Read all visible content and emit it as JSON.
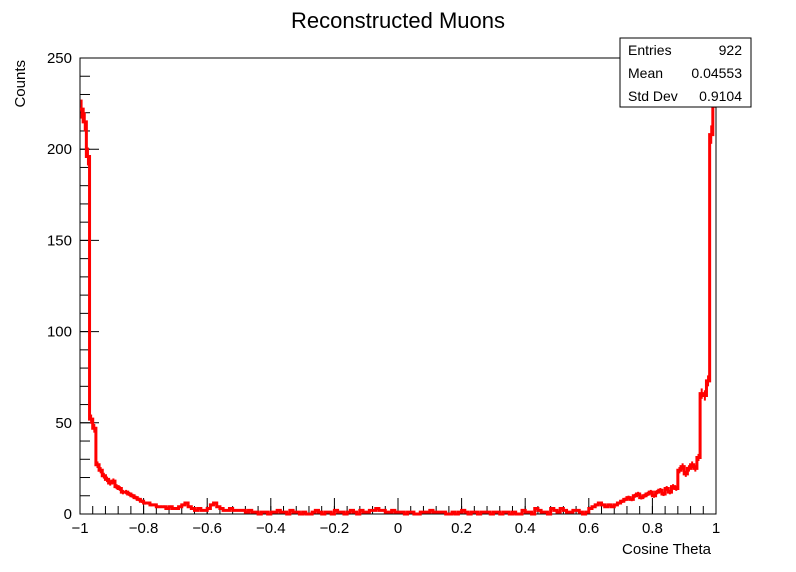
{
  "chart_data": {
    "type": "histogram",
    "title": "Reconstructed Muons",
    "xlabel": "Cosine Theta",
    "ylabel": "Counts",
    "xlim": [
      -1,
      1
    ],
    "ylim": [
      0,
      250
    ],
    "x_ticks": [
      -1,
      -0.8,
      -0.6,
      -0.4,
      -0.2,
      0,
      0.2,
      0.4,
      0.6,
      0.8,
      1
    ],
    "x_tick_labels": [
      "−1",
      "−0.8",
      "−0.6",
      "−0.4",
      "−0.2",
      "0",
      "0.2",
      "0.4",
      "0.6",
      "0.8",
      "1"
    ],
    "y_ticks": [
      0,
      50,
      100,
      150,
      200,
      250
    ],
    "y_tick_labels": [
      "0",
      "50",
      "100",
      "150",
      "200",
      "250"
    ],
    "line_color": "#ff0000",
    "grid": false,
    "legend": "none",
    "bins": {
      "count": 200,
      "range": [
        -1,
        1
      ],
      "values": [
        222,
        215,
        196,
        52,
        47,
        27,
        24,
        21,
        19,
        17,
        18,
        15,
        14,
        12,
        12,
        11,
        10,
        9,
        8,
        7,
        6,
        6,
        5,
        5,
        4,
        4,
        4,
        3,
        4,
        3,
        3,
        4,
        5,
        6,
        4,
        3,
        2,
        3,
        2,
        2,
        3,
        5,
        6,
        4,
        3,
        2,
        2,
        3,
        2,
        2,
        2,
        2,
        1,
        2,
        1,
        1,
        0,
        1,
        1,
        0,
        1,
        1,
        2,
        1,
        1,
        0,
        2,
        1,
        1,
        0,
        1,
        0,
        0,
        1,
        2,
        1,
        0,
        1,
        1,
        0,
        2,
        1,
        1,
        0,
        1,
        2,
        1,
        0,
        2,
        1,
        1,
        2,
        2,
        3,
        2,
        2,
        1,
        1,
        2,
        1,
        1,
        1,
        0,
        1,
        1,
        0,
        0,
        1,
        1,
        1,
        2,
        1,
        1,
        1,
        1,
        0,
        0,
        1,
        0,
        1,
        2,
        1,
        0,
        1,
        1,
        0,
        1,
        1,
        1,
        0,
        1,
        1,
        0,
        1,
        1,
        0,
        1,
        0,
        0,
        2,
        1,
        1,
        0,
        3,
        2,
        1,
        1,
        0,
        3,
        2,
        1,
        3,
        2,
        1,
        1,
        2,
        2,
        1,
        0,
        1,
        2,
        3,
        2,
        1,
        2,
        3,
        2,
        3,
        2,
        1,
        2,
        1,
        2,
        1,
        2,
        3,
        2,
        1,
        2,
        3,
        2,
        3,
        3,
        2,
        3,
        3,
        2,
        3,
        4,
        3,
        2,
        3,
        4,
        3,
        3,
        3,
        4,
        3,
        3,
        2
      ],
      "right_edge_values": [
        3,
        4,
        5,
        6,
        5,
        4,
        5,
        4,
        5,
        6,
        7,
        8,
        9,
        8,
        10,
        11,
        9,
        10,
        11,
        12,
        10,
        12,
        13,
        11,
        14,
        12,
        15,
        14,
        24,
        26,
        22,
        25,
        27,
        25,
        31,
        66,
        65,
        73,
        208,
        228
      ]
    },
    "stats": {
      "entries_label": "Entries",
      "entries_value": "922",
      "mean_label": "Mean",
      "mean_value": "0.04553",
      "stddev_label": "Std Dev",
      "stddev_value": "0.9104"
    }
  }
}
